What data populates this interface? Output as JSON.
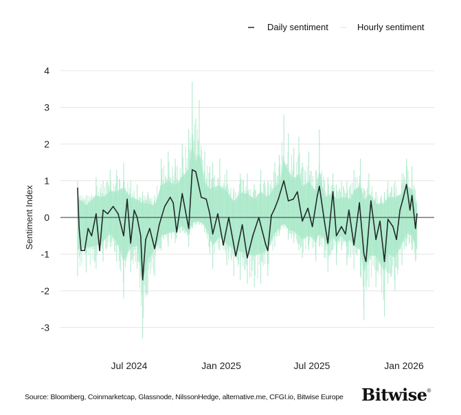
{
  "chart_data": {
    "type": "line",
    "title": "",
    "xlabel": "",
    "ylabel": "Sentiment Index",
    "ylim": [
      -3.5,
      4
    ],
    "yticks": [
      4,
      3,
      2,
      1,
      0,
      -1,
      -2,
      -3
    ],
    "xticks": [
      {
        "date": "2024-07-01",
        "label": "Jul 2024"
      },
      {
        "date": "2025-01-01",
        "label": "Jan 2025"
      },
      {
        "date": "2025-07-01",
        "label": "Jul 2025"
      },
      {
        "date": "2026-01-01",
        "label": "Jan 2026"
      }
    ],
    "xlim": [
      "2024-02-15",
      "2026-02-20"
    ],
    "grid": true,
    "legend_position": "top-right",
    "colors": {
      "daily": "#1f2a28",
      "hourly": "#a8e8c8",
      "grid": "#e6e6e6",
      "zero": "#333333"
    },
    "series": [
      {
        "name": "Daily sentiment",
        "points": [
          [
            "2024-03-20",
            0.8
          ],
          [
            "2024-03-23",
            -0.3
          ],
          [
            "2024-03-27",
            -0.9
          ],
          [
            "2024-04-03",
            -0.9
          ],
          [
            "2024-04-10",
            -0.3
          ],
          [
            "2024-04-17",
            -0.5
          ],
          [
            "2024-04-26",
            0.1
          ],
          [
            "2024-05-03",
            -0.9
          ],
          [
            "2024-05-10",
            0.2
          ],
          [
            "2024-05-19",
            0.1
          ],
          [
            "2024-05-30",
            0.3
          ],
          [
            "2024-06-09",
            0.1
          ],
          [
            "2024-06-20",
            -0.5
          ],
          [
            "2024-06-27",
            0.5
          ],
          [
            "2024-07-04",
            -0.7
          ],
          [
            "2024-07-11",
            0.2
          ],
          [
            "2024-07-17",
            0.0
          ],
          [
            "2024-07-24",
            -0.5
          ],
          [
            "2024-07-28",
            -1.7
          ],
          [
            "2024-08-03",
            -0.6
          ],
          [
            "2024-08-11",
            -0.3
          ],
          [
            "2024-08-21",
            -0.85
          ],
          [
            "2024-08-30",
            -0.2
          ],
          [
            "2024-09-10",
            0.3
          ],
          [
            "2024-09-21",
            0.55
          ],
          [
            "2024-09-27",
            0.4
          ],
          [
            "2024-10-04",
            -0.4
          ],
          [
            "2024-10-15",
            0.65
          ],
          [
            "2024-10-28",
            -0.3
          ],
          [
            "2024-11-04",
            1.3
          ],
          [
            "2024-11-11",
            1.25
          ],
          [
            "2024-11-15",
            1.0
          ],
          [
            "2024-11-22",
            0.55
          ],
          [
            "2024-12-02",
            0.5
          ],
          [
            "2024-12-09",
            0.1
          ],
          [
            "2024-12-15",
            -0.45
          ],
          [
            "2024-12-25",
            0.1
          ],
          [
            "2025-01-05",
            -0.75
          ],
          [
            "2025-01-16",
            0.0
          ],
          [
            "2025-01-30",
            -1.05
          ],
          [
            "2025-02-12",
            -0.2
          ],
          [
            "2025-02-22",
            -1.1
          ],
          [
            "2025-03-05",
            -0.5
          ],
          [
            "2025-03-17",
            0.0
          ],
          [
            "2025-03-31",
            -0.75
          ],
          [
            "2025-04-04",
            -0.9
          ],
          [
            "2025-04-11",
            0.05
          ],
          [
            "2025-04-18",
            0.25
          ],
          [
            "2025-04-25",
            0.5
          ],
          [
            "2025-05-06",
            1.0
          ],
          [
            "2025-05-15",
            0.45
          ],
          [
            "2025-05-25",
            0.5
          ],
          [
            "2025-06-02",
            0.7
          ],
          [
            "2025-06-12",
            -0.1
          ],
          [
            "2025-06-23",
            0.25
          ],
          [
            "2025-07-02",
            -0.25
          ],
          [
            "2025-07-12",
            0.6
          ],
          [
            "2025-07-16",
            0.85
          ],
          [
            "2025-07-26",
            -0.1
          ],
          [
            "2025-08-02",
            -0.7
          ],
          [
            "2025-08-12",
            0.7
          ],
          [
            "2025-08-19",
            -0.5
          ],
          [
            "2025-08-29",
            -0.25
          ],
          [
            "2025-09-06",
            -0.45
          ],
          [
            "2025-09-13",
            0.2
          ],
          [
            "2025-09-23",
            -0.75
          ],
          [
            "2025-10-04",
            0.4
          ],
          [
            "2025-10-13",
            -1.0
          ],
          [
            "2025-10-17",
            -1.2
          ],
          [
            "2025-10-27",
            0.45
          ],
          [
            "2025-11-06",
            -0.6
          ],
          [
            "2025-11-14",
            -0.1
          ],
          [
            "2025-11-23",
            -1.2
          ],
          [
            "2025-11-30",
            -0.05
          ],
          [
            "2025-12-10",
            -0.25
          ],
          [
            "2025-12-17",
            -0.6
          ],
          [
            "2025-12-24",
            0.2
          ],
          [
            "2025-12-30",
            0.5
          ],
          [
            "2026-01-06",
            0.9
          ],
          [
            "2026-01-13",
            0.2
          ],
          [
            "2026-01-17",
            0.6
          ],
          [
            "2026-01-24",
            -0.3
          ],
          [
            "2026-01-27",
            0.1
          ]
        ]
      },
      {
        "name": "Hourly sentiment",
        "range_points": [
          [
            "2024-03-20",
            1.0,
            -1.6
          ],
          [
            "2024-04-06",
            0.6,
            -1.5
          ],
          [
            "2024-04-26",
            1.1,
            -1.4
          ],
          [
            "2024-05-10",
            1.0,
            -1.2
          ],
          [
            "2024-05-24",
            1.3,
            -0.8
          ],
          [
            "2024-06-06",
            1.3,
            -1.2
          ],
          [
            "2024-06-20",
            1.5,
            -2.2
          ],
          [
            "2024-07-04",
            1.0,
            -1.5
          ],
          [
            "2024-07-17",
            0.9,
            -1.4
          ],
          [
            "2024-07-28",
            0.7,
            -3.3
          ],
          [
            "2024-08-07",
            0.7,
            -2.1
          ],
          [
            "2024-08-21",
            0.6,
            -1.6
          ],
          [
            "2024-09-03",
            1.6,
            -0.9
          ],
          [
            "2024-09-17",
            1.8,
            -0.8
          ],
          [
            "2024-10-01",
            1.6,
            -0.7
          ],
          [
            "2024-10-15",
            2.0,
            -0.4
          ],
          [
            "2024-10-28",
            2.4,
            -0.8
          ],
          [
            "2024-11-04",
            3.7,
            -0.3
          ],
          [
            "2024-11-11",
            2.7,
            -0.2
          ],
          [
            "2024-11-18",
            3.2,
            -0.2
          ],
          [
            "2024-11-29",
            1.8,
            -0.4
          ],
          [
            "2024-12-09",
            1.4,
            -1.0
          ],
          [
            "2024-12-15",
            1.5,
            -1.4
          ],
          [
            "2024-12-29",
            1.6,
            -0.9
          ],
          [
            "2025-01-12",
            1.3,
            -1.3
          ],
          [
            "2025-01-26",
            0.8,
            -1.6
          ],
          [
            "2025-02-08",
            1.2,
            -1.7
          ],
          [
            "2025-02-22",
            1.2,
            -1.8
          ],
          [
            "2025-03-08",
            0.9,
            -1.9
          ],
          [
            "2025-03-21",
            1.3,
            -1.8
          ],
          [
            "2025-04-04",
            1.0,
            -1.6
          ],
          [
            "2025-04-18",
            1.5,
            -0.8
          ],
          [
            "2025-04-27",
            1.7,
            -0.5
          ],
          [
            "2025-05-06",
            2.8,
            -0.3
          ],
          [
            "2025-05-15",
            2.3,
            -0.6
          ],
          [
            "2025-05-26",
            1.9,
            -0.7
          ],
          [
            "2025-06-05",
            2.2,
            -0.9
          ],
          [
            "2025-06-12",
            1.5,
            -1.1
          ],
          [
            "2025-06-25",
            1.8,
            -0.9
          ],
          [
            "2025-07-09",
            1.3,
            -1.2
          ],
          [
            "2025-07-16",
            2.4,
            -0.8
          ],
          [
            "2025-07-26",
            1.0,
            -1.1
          ],
          [
            "2025-08-02",
            1.1,
            -1.5
          ],
          [
            "2025-08-12",
            1.2,
            -0.9
          ],
          [
            "2025-08-19",
            0.9,
            -1.3
          ],
          [
            "2025-08-29",
            1.0,
            -0.9
          ],
          [
            "2025-09-09",
            1.0,
            -1.3
          ],
          [
            "2025-09-16",
            0.9,
            -1.1
          ],
          [
            "2025-09-23",
            1.3,
            -1.4
          ],
          [
            "2025-10-06",
            1.6,
            -1.6
          ],
          [
            "2025-10-13",
            0.8,
            -2.8
          ],
          [
            "2025-10-23",
            1.2,
            -1.9
          ],
          [
            "2025-11-06",
            0.7,
            -1.9
          ],
          [
            "2025-11-23",
            0.7,
            -2.7
          ],
          [
            "2025-11-30",
            1.0,
            -1.8
          ],
          [
            "2025-12-14",
            1.0,
            -2.0
          ],
          [
            "2025-12-28",
            1.2,
            -1.3
          ],
          [
            "2026-01-06",
            1.6,
            -0.8
          ],
          [
            "2026-01-17",
            1.4,
            -0.9
          ],
          [
            "2026-01-27",
            0.6,
            -1.6
          ]
        ]
      }
    ]
  },
  "legend": {
    "daily_label": "Daily sentiment",
    "hourly_label": "Hourly sentiment"
  },
  "footer": {
    "source": "Source: Bloomberg, Coinmarketcap, Glassnode, NilssonHedge, alternative.me, CFGI.io, Bitwise Europe",
    "logo": "Bitwise",
    "logo_mark": "®"
  }
}
